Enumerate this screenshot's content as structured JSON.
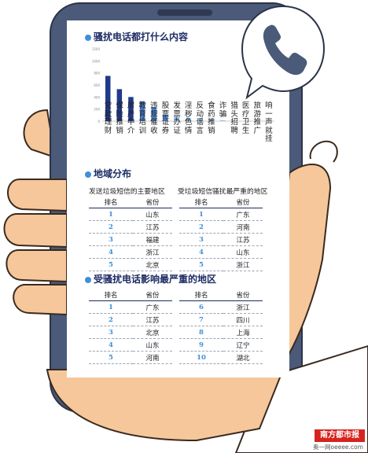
{
  "section1": {
    "title": "骚扰电话都打什么内容"
  },
  "chart_data": {
    "type": "bar",
    "ylim": [
      0,
      1200
    ],
    "ytick_labels": [
      "1200",
      "1000",
      "800",
      "600",
      "400",
      "200",
      "0"
    ],
    "categories": [
      "贷款理财",
      "保险推销",
      "房产中介",
      "教育培训",
      "违规催收",
      "股票证券",
      "发票办证",
      "淫秽色情",
      "反动谣言",
      "食药推销",
      "诈骗",
      "猎头招聘",
      "医疗卫生",
      "旅游推广",
      "响一声就挂"
    ],
    "values": [
      750,
      530,
      400,
      330,
      235,
      110,
      75,
      55,
      42,
      32,
      15,
      8,
      5,
      3,
      2
    ],
    "colors": {
      "dark": "#1f3a8a",
      "mid": "#4a7fd0",
      "light": "#8ec3ec"
    }
  },
  "section2": {
    "title": "地域分布",
    "left": {
      "heading": "发送垃圾短信的主要地区",
      "col_rank": "排名",
      "col_province": "省份",
      "rows": [
        {
          "rank": "1",
          "province": "山东"
        },
        {
          "rank": "2",
          "province": "江苏"
        },
        {
          "rank": "3",
          "province": "福建"
        },
        {
          "rank": "4",
          "province": "浙江"
        },
        {
          "rank": "5",
          "province": "北京"
        }
      ]
    },
    "right": {
      "heading": "受垃圾短信骚扰最严重的地区",
      "col_rank": "排名",
      "col_province": "省份",
      "rows": [
        {
          "rank": "1",
          "province": "广东"
        },
        {
          "rank": "2",
          "province": "河南"
        },
        {
          "rank": "3",
          "province": "江苏"
        },
        {
          "rank": "4",
          "province": "山东"
        },
        {
          "rank": "5",
          "province": "浙江"
        }
      ]
    }
  },
  "section3": {
    "title": "受骚扰电话影响最严重的地区",
    "left": {
      "col_rank": "排名",
      "col_province": "省份",
      "rows": [
        {
          "rank": "1",
          "province": "广东"
        },
        {
          "rank": "2",
          "province": "江苏"
        },
        {
          "rank": "3",
          "province": "北京"
        },
        {
          "rank": "4",
          "province": "山东"
        },
        {
          "rank": "5",
          "province": "河南"
        }
      ]
    },
    "right": {
      "col_rank": "排名",
      "col_province": "省份",
      "rows": [
        {
          "rank": "6",
          "province": "浙江"
        },
        {
          "rank": "7",
          "province": "四川"
        },
        {
          "rank": "8",
          "province": "上海"
        },
        {
          "rank": "9",
          "province": "辽宁"
        },
        {
          "rank": "10",
          "province": "湖北"
        }
      ]
    }
  },
  "footer": {
    "brand": "南方都市报",
    "url": "奥一网oeeee.com"
  },
  "icons": {
    "phone": "phone-handset-icon"
  }
}
